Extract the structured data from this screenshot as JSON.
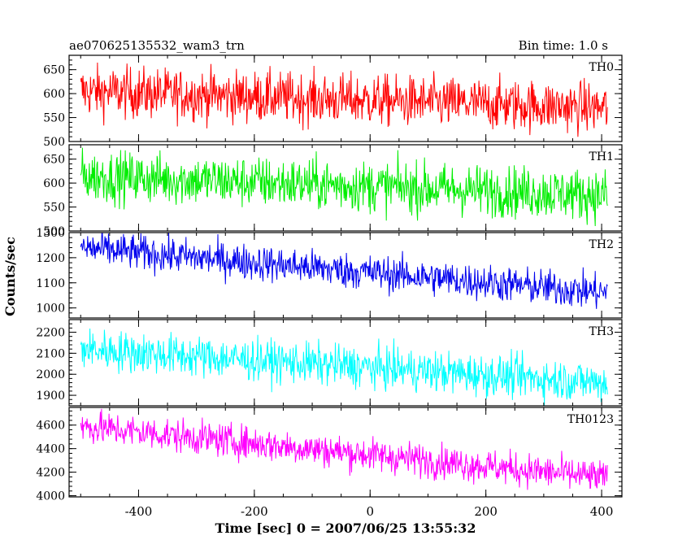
{
  "chart_data": {
    "type": "line",
    "title": "ae070625135532_wam3_trn",
    "bin_time": "Bin time: 1.0 s",
    "xlabel": "Time [sec] 0 = 2007/06/25 13:55:32",
    "ylabel": "Counts/sec",
    "xlim": [
      -520,
      435
    ],
    "xticks": [
      -400,
      -200,
      0,
      200,
      400
    ],
    "series": [
      {
        "name": "TH0",
        "color": "#ff0000",
        "ylim": [
          500,
          680
        ],
        "yticks": [
          500,
          550,
          600,
          650
        ],
        "start": 605,
        "end": 570,
        "noise": 30,
        "x": [
          -500,
          410
        ],
        "y": [
          605,
          570
        ]
      },
      {
        "name": "TH1",
        "color": "#00ee00",
        "ylim": [
          500,
          680
        ],
        "yticks": [
          500,
          550,
          600,
          650
        ],
        "start": 615,
        "end": 575,
        "noise": 30,
        "x": [
          -500,
          410
        ],
        "y": [
          615,
          575
        ]
      },
      {
        "name": "TH2",
        "color": "#0000ee",
        "ylim": [
          960,
          1300
        ],
        "yticks": [
          1000,
          1100,
          1200,
          1300
        ],
        "start": 1240,
        "end": 1060,
        "noise": 40,
        "x": [
          -500,
          410
        ],
        "y": [
          1240,
          1060
        ]
      },
      {
        "name": "TH3",
        "color": "#00ffff",
        "ylim": [
          1850,
          2260
        ],
        "yticks": [
          1900,
          2000,
          2100,
          2200
        ],
        "start": 2120,
        "end": 1960,
        "noise": 55,
        "x": [
          -500,
          410
        ],
        "y": [
          2120,
          1960
        ]
      },
      {
        "name": "TH0123",
        "color": "#ff00ff",
        "ylim": [
          3990,
          4750
        ],
        "yticks": [
          4000,
          4200,
          4400,
          4600
        ],
        "start": 4590,
        "end": 4150,
        "noise": 80,
        "x": [
          -500,
          410
        ],
        "y": [
          4590,
          4150
        ]
      }
    ]
  }
}
